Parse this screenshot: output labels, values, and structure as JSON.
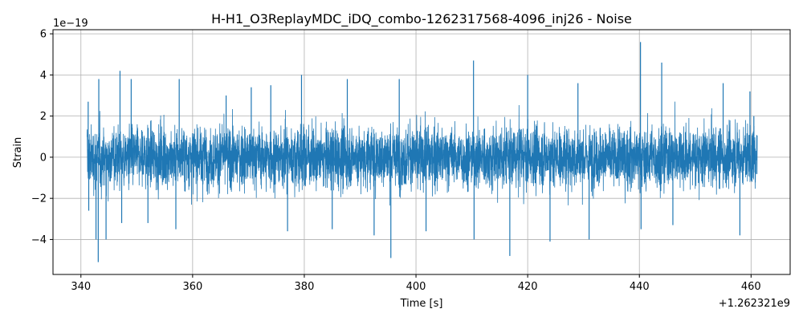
{
  "chart_data": {
    "type": "line",
    "title": "H-H1_O3ReplayMDC_iDQ_combo-1262317568-4096_inj26 - Noise",
    "xlabel": "Time [s]",
    "ylabel": "Strain",
    "x_offset_label": "+1.262321e9",
    "y_exponent_label": "1e−19",
    "xlim": [
      335,
      467
    ],
    "ylim": [
      -5.7,
      6.2
    ],
    "x_ticks": [
      340,
      360,
      380,
      400,
      420,
      440,
      460
    ],
    "x_tick_labels": [
      "340",
      "360",
      "380",
      "400",
      "420",
      "440",
      "460"
    ],
    "y_ticks": [
      -4,
      -2,
      0,
      2,
      4,
      6
    ],
    "y_tick_labels": [
      "−4",
      "−2",
      "0",
      "2",
      "4",
      "6"
    ],
    "grid": true,
    "line_color": "#1f77b4",
    "series": [
      {
        "x_start": 341.1,
        "x_end": 461.1,
        "typical_envelope": [
          -2.2,
          2.2
        ],
        "peaks": [
          {
            "x": 341.3,
            "y": 2.7
          },
          {
            "x": 341.4,
            "y": -2.6
          },
          {
            "x": 342.7,
            "y": -4.0
          },
          {
            "x": 343.1,
            "y": -5.1
          },
          {
            "x": 343.2,
            "y": 3.8
          },
          {
            "x": 344.5,
            "y": -4.0
          },
          {
            "x": 347.0,
            "y": 4.2
          },
          {
            "x": 347.3,
            "y": -3.2
          },
          {
            "x": 349.0,
            "y": 3.8
          },
          {
            "x": 352.0,
            "y": -3.2
          },
          {
            "x": 357.6,
            "y": 3.8
          },
          {
            "x": 357.0,
            "y": -3.5
          },
          {
            "x": 360.2,
            "y": -1.0
          },
          {
            "x": 366.0,
            "y": 3.0
          },
          {
            "x": 370.5,
            "y": 3.4
          },
          {
            "x": 374.0,
            "y": 3.5
          },
          {
            "x": 377.0,
            "y": -3.6
          },
          {
            "x": 379.5,
            "y": 4.0
          },
          {
            "x": 385.0,
            "y": -3.5
          },
          {
            "x": 387.7,
            "y": 3.8
          },
          {
            "x": 392.5,
            "y": -3.8
          },
          {
            "x": 395.5,
            "y": -4.9
          },
          {
            "x": 397.0,
            "y": 3.8
          },
          {
            "x": 401.8,
            "y": -3.6
          },
          {
            "x": 410.3,
            "y": 4.7
          },
          {
            "x": 410.4,
            "y": -4.0
          },
          {
            "x": 416.8,
            "y": -4.8
          },
          {
            "x": 420.0,
            "y": 4.0
          },
          {
            "x": 424.0,
            "y": -4.1
          },
          {
            "x": 429.0,
            "y": 3.6
          },
          {
            "x": 431.0,
            "y": -4.0
          },
          {
            "x": 440.2,
            "y": 5.6
          },
          {
            "x": 440.3,
            "y": -3.5
          },
          {
            "x": 444.0,
            "y": 4.6
          },
          {
            "x": 446.0,
            "y": -3.3
          },
          {
            "x": 455.0,
            "y": 3.6
          },
          {
            "x": 458.0,
            "y": -3.8
          },
          {
            "x": 459.8,
            "y": 3.2
          },
          {
            "x": 460.5,
            "y": 2.0
          }
        ]
      }
    ]
  }
}
